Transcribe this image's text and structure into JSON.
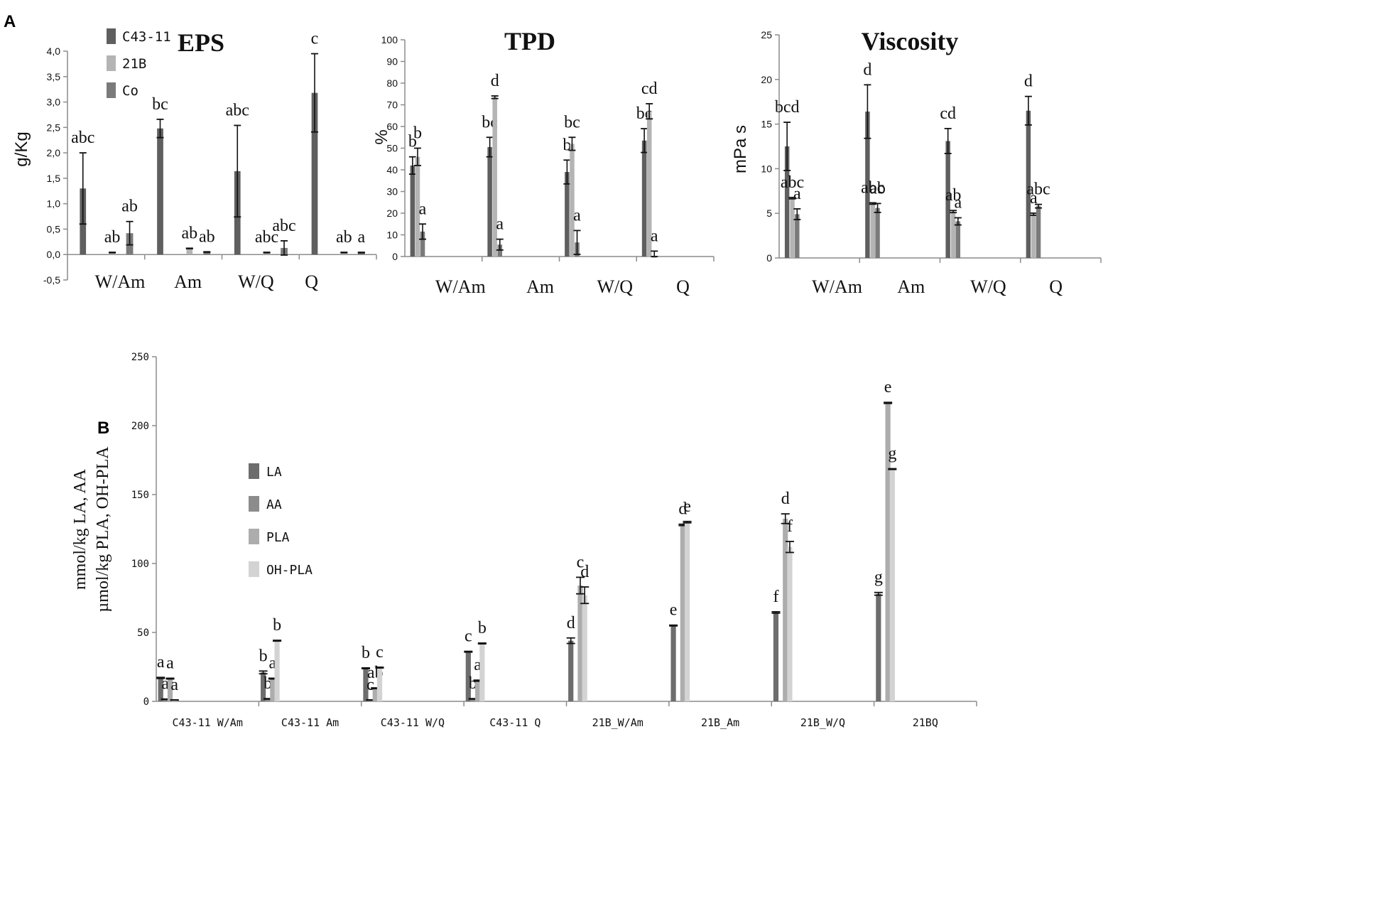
{
  "panel_labels": {
    "a": "A",
    "b": "B"
  },
  "colors": {
    "axis": "#8c8c8c",
    "text": "#111111",
    "s1": "#5f5f5f",
    "s2": "#b4b4b4",
    "s3": "#7a7a7a",
    "la": "#6d6d6d",
    "aa": "#8c8c8c",
    "pla": "#adadad",
    "ohpla": "#d3d3d3"
  },
  "chart_data": [
    {
      "id": "eps",
      "type": "bar",
      "title": "EPS",
      "ylabel": "g/Kg",
      "ylim": [
        -0.5,
        4.0
      ],
      "yticks": [
        "-0,5",
        "0,0",
        "0,5",
        "1,0",
        "1,5",
        "2,0",
        "2,5",
        "3,0",
        "3,5",
        "4,0"
      ],
      "categories": [
        "W/Am",
        "Am",
        "W/Q",
        "Q"
      ],
      "legend": [
        "C43-11",
        "21B",
        "Co"
      ],
      "series": [
        {
          "name": "C43-11",
          "values": [
            1.3,
            2.48,
            1.64,
            3.18
          ],
          "errors": [
            0.7,
            0.18,
            0.9,
            0.77
          ],
          "labels": [
            "abc",
            "bc",
            "abc",
            "c"
          ]
        },
        {
          "name": "21B",
          "values": [
            0.04,
            0.12,
            0.04,
            0.04
          ],
          "errors": [
            0.005,
            0.005,
            0.005,
            0.005
          ],
          "labels": [
            "ab",
            "ab",
            "abc",
            "ab"
          ]
        },
        {
          "name": "Co",
          "values": [
            0.42,
            0.05,
            0.13,
            0.04
          ],
          "errors": [
            0.23,
            0.005,
            0.14,
            0.005
          ],
          "labels": [
            "ab",
            "ab",
            "abc",
            "a"
          ]
        }
      ]
    },
    {
      "id": "tpd",
      "type": "bar",
      "title": "TPD",
      "ylabel": "%",
      "ylim": [
        0,
        100
      ],
      "yticks": [
        "0",
        "10",
        "20",
        "30",
        "40",
        "50",
        "60",
        "70",
        "80",
        "90",
        "100"
      ],
      "categories": [
        "W/Am",
        "Am",
        "W/Q",
        "Q"
      ],
      "series": [
        {
          "name": "C43-11",
          "values": [
            42,
            50.5,
            39,
            53.5
          ],
          "errors": [
            4,
            4.5,
            5.5,
            5.5
          ],
          "labels": [
            "b",
            "bc",
            "b",
            "bc"
          ]
        },
        {
          "name": "21B",
          "values": [
            46,
            73.5,
            52,
            67
          ],
          "errors": [
            4,
            0.6,
            3,
            3.5
          ],
          "labels": [
            "b",
            "d",
            "bc",
            "cd"
          ]
        },
        {
          "name": "Co",
          "values": [
            11.5,
            5.5,
            6.5,
            0
          ],
          "errors": [
            3.5,
            2.5,
            5.5,
            2.5
          ],
          "labels": [
            "a",
            "a",
            "a",
            "a"
          ]
        }
      ]
    },
    {
      "id": "viscosity",
      "type": "bar",
      "title": "Viscosity",
      "ylabel": "mPa s",
      "ylim": [
        0,
        25
      ],
      "yticks": [
        "0",
        "5",
        "10",
        "15",
        "20",
        "25"
      ],
      "categories": [
        "W/Am",
        "Am",
        "W/Q",
        "Q"
      ],
      "series": [
        {
          "name": "C43-11",
          "values": [
            12.5,
            16.4,
            13.1,
            16.5
          ],
          "errors": [
            2.7,
            3.0,
            1.4,
            1.6
          ],
          "labels": [
            "bcd",
            "d",
            "cd",
            "d"
          ]
        },
        {
          "name": "21B",
          "values": [
            6.7,
            6.1,
            5.2,
            4.9
          ],
          "errors": [
            0.08,
            0.08,
            0.12,
            0.12
          ],
          "labels": [
            "abc",
            "abc",
            "ab",
            "a"
          ]
        },
        {
          "name": "Co",
          "values": [
            4.9,
            5.6,
            4.1,
            5.8
          ],
          "errors": [
            0.6,
            0.5,
            0.4,
            0.2
          ],
          "labels": [
            "a",
            "ab",
            "a",
            "abc"
          ]
        }
      ]
    },
    {
      "id": "acids",
      "type": "bar",
      "title": "",
      "ylabel": [
        "mmol/kg LA, AA",
        "µmol/kg PLA, OH-PLA"
      ],
      "ylim": [
        0,
        250
      ],
      "yticks": [
        "0",
        "50",
        "100",
        "150",
        "200",
        "250"
      ],
      "categories": [
        "C43-11 W/Am",
        "C43-11 Am",
        "C43-11 W/Q",
        "C43-11 Q",
        "21B_W/Am",
        "21B_Am",
        "21B_W/Q",
        "21BQ"
      ],
      "legend": [
        "LA",
        "AA",
        "PLA",
        "OH-PLA"
      ],
      "series": [
        {
          "name": "LA",
          "values": [
            17,
            21,
            24,
            36,
            44,
            55,
            64.5,
            78
          ],
          "errors": [
            0.4,
            1,
            0.3,
            0.3,
            2,
            0.3,
            0.5,
            1
          ],
          "labels": [
            "a",
            "b",
            "b",
            "c",
            "d",
            "e",
            "f",
            "g"
          ]
        },
        {
          "name": "AA",
          "values": [
            1.5,
            1.8,
            1,
            1.8,
            null,
            null,
            null,
            null
          ],
          "errors": [
            0.2,
            0.2,
            0.1,
            0.2,
            null,
            null,
            null,
            null
          ],
          "labels": [
            "a",
            "b",
            "c",
            "b",
            "",
            "",
            "",
            ""
          ]
        },
        {
          "name": "PLA",
          "values": [
            16.5,
            16.5,
            9.5,
            15,
            84,
            128,
            132.5,
            216.5
          ],
          "errors": [
            0.3,
            0.3,
            0.3,
            0.4,
            6,
            0.5,
            3.5,
            0.4
          ],
          "labels": [
            "a",
            "a",
            "ab",
            "a",
            "c",
            "d",
            "d",
            "e"
          ]
        },
        {
          "name": "OH-PLA",
          "values": [
            1,
            44,
            24.5,
            42,
            77,
            130,
            112,
            168.5
          ],
          "errors": [
            0.1,
            0.3,
            0.3,
            0.3,
            6,
            0.5,
            4,
            0.3
          ],
          "labels": [
            "a",
            "b",
            "c",
            "b",
            "d",
            "e",
            "f",
            "g"
          ]
        }
      ]
    }
  ]
}
